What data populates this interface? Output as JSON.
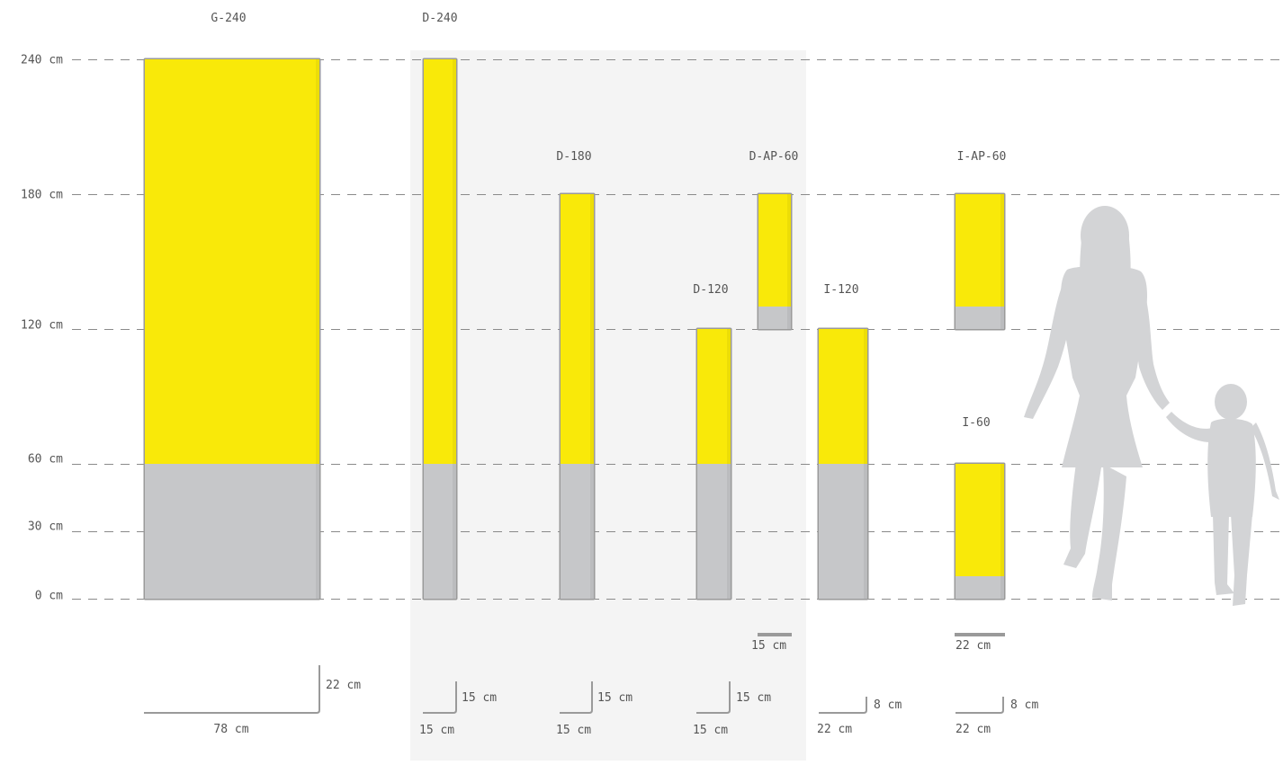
{
  "colors": {
    "yellow": "#f9e909",
    "gray_base": "#c6c7c9",
    "panel": "#f4f4f4",
    "gridline": "#8a8a8a",
    "label": "#555555",
    "silhouette": "#d3d4d6",
    "outline": "#9a9a9a"
  },
  "scale": {
    "ticks": [
      {
        "value": 240,
        "label": "240 cm"
      },
      {
        "value": 180,
        "label": "180 cm"
      },
      {
        "value": 120,
        "label": "120 cm"
      },
      {
        "value": 60,
        "label": "60 cm"
      },
      {
        "value": 30,
        "label": "30 cm"
      },
      {
        "value": 0,
        "label": "0 cm"
      }
    ]
  },
  "models": [
    {
      "id": "g-240",
      "name": "G-240",
      "top_cm": 240,
      "bottom_cm": 0,
      "base_top_cm": 60,
      "width_cm": 78
    },
    {
      "id": "d-240",
      "name": "D-240",
      "top_cm": 240,
      "bottom_cm": 0,
      "base_top_cm": 60,
      "width_cm": 15
    },
    {
      "id": "d-180",
      "name": "D-180",
      "top_cm": 180,
      "bottom_cm": 0,
      "base_top_cm": 60,
      "width_cm": 15
    },
    {
      "id": "d-120",
      "name": "D-120",
      "top_cm": 120,
      "bottom_cm": 0,
      "base_top_cm": 60,
      "width_cm": 15
    },
    {
      "id": "d-ap-60",
      "name": "D-AP-60",
      "top_cm": 180,
      "bottom_cm": 120,
      "base_top_cm": 130,
      "width_cm": 15
    },
    {
      "id": "i-120",
      "name": "I-120",
      "top_cm": 120,
      "bottom_cm": 0,
      "base_top_cm": 60,
      "width_cm": 22
    },
    {
      "id": "i-ap-60",
      "name": "I-AP-60",
      "top_cm": 180,
      "bottom_cm": 120,
      "base_top_cm": 130,
      "width_cm": 22
    },
    {
      "id": "i-60",
      "name": "I-60",
      "top_cm": 60,
      "bottom_cm": 0,
      "base_top_cm": 10,
      "width_cm": 22
    }
  ],
  "width_labels": {
    "d_ap_60": "15 cm",
    "i_ap_60": "22 cm"
  },
  "footprints": [
    {
      "id": "g-240",
      "width_label": "78 cm",
      "depth_label": "22 cm"
    },
    {
      "id": "d-240",
      "width_label": "15 cm",
      "depth_label": "15 cm"
    },
    {
      "id": "d-180",
      "width_label": "15 cm",
      "depth_label": "15 cm"
    },
    {
      "id": "d-120",
      "width_label": "15 cm",
      "depth_label": "15 cm"
    },
    {
      "id": "i-120",
      "width_label": "22 cm",
      "depth_label": "8 cm"
    },
    {
      "id": "i-60",
      "width_label": "22 cm",
      "depth_label": "8 cm"
    }
  ],
  "figures": [
    {
      "id": "woman",
      "icon": "woman-silhouette-icon"
    },
    {
      "id": "child",
      "icon": "child-silhouette-icon"
    }
  ]
}
